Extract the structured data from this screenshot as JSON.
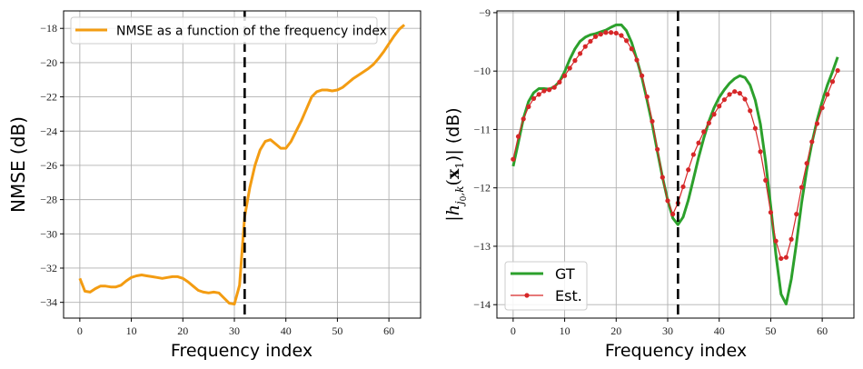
{
  "chart_data": [
    {
      "type": "line",
      "title": "",
      "xlabel": "Frequency index",
      "ylabel": "NMSE (dB)",
      "xlim": [
        -3.15,
        66.15
      ],
      "ylim": [
        -34.92,
        -16.98
      ],
      "xticks": [
        0,
        10,
        20,
        30,
        40,
        50,
        60
      ],
      "yticks": [
        -34,
        -32,
        -30,
        -28,
        -26,
        -24,
        -22,
        -20,
        -18
      ],
      "xtick_labels": [
        "0",
        "10",
        "20",
        "30",
        "40",
        "50",
        "60"
      ],
      "ytick_labels": [
        "−34",
        "−32",
        "−30",
        "−28",
        "−26",
        "−24",
        "−22",
        "−20",
        "−18"
      ],
      "grid": true,
      "legend_position": "top-left",
      "vline": 32,
      "series": [
        {
          "name": "NMSE as a function of the frequency index",
          "color": "#f39c12",
          "x_start": 0,
          "values": [
            -32.6,
            -33.35,
            -33.4,
            -33.2,
            -33.05,
            -33.05,
            -33.1,
            -33.1,
            -33.0,
            -32.75,
            -32.55,
            -32.45,
            -32.4,
            -32.45,
            -32.5,
            -32.55,
            -32.6,
            -32.55,
            -32.5,
            -32.5,
            -32.6,
            -32.8,
            -33.05,
            -33.3,
            -33.4,
            -33.45,
            -33.4,
            -33.45,
            -33.75,
            -34.05,
            -34.1,
            -33.0,
            -29.0,
            -27.3,
            -26.0,
            -25.1,
            -24.6,
            -24.5,
            -24.75,
            -25.0,
            -25.0,
            -24.6,
            -24.0,
            -23.4,
            -22.7,
            -22.0,
            -21.7,
            -21.6,
            -21.6,
            -21.65,
            -21.6,
            -21.45,
            -21.2,
            -20.95,
            -20.75,
            -20.55,
            -20.35,
            -20.1,
            -19.75,
            -19.35,
            -18.9,
            -18.45,
            -18.05,
            -17.8
          ]
        }
      ]
    },
    {
      "type": "line",
      "title": "",
      "xlabel": "Frequency index",
      "ylabel": "|h_{j0,k}(x_1)| (dB)",
      "ylabel_parts": {
        "pre": "|h",
        "sub": "j",
        "subsub": "0",
        "sub2": ",k",
        "mid": "(",
        "bold": "x",
        "sub3": "1",
        "post": ")| (dB)"
      },
      "xlim": [
        -3.15,
        66.15
      ],
      "ylim": [
        -14.23,
        -8.97
      ],
      "xticks": [
        0,
        10,
        20,
        30,
        40,
        50,
        60
      ],
      "yticks": [
        -14,
        -13,
        -12,
        -11,
        -10,
        -9
      ],
      "xtick_labels": [
        "0",
        "10",
        "20",
        "30",
        "40",
        "50",
        "60"
      ],
      "ytick_labels": [
        "−14",
        "−13",
        "−12",
        "−11",
        "−10",
        "−9"
      ],
      "grid": true,
      "legend_position": "bottom-left",
      "vline": 32,
      "series": [
        {
          "name": "GT",
          "color": "#2ca02c",
          "x_start": 0,
          "values": [
            -11.63,
            -11.23,
            -10.81,
            -10.52,
            -10.37,
            -10.3,
            -10.3,
            -10.31,
            -10.27,
            -10.18,
            -10.01,
            -9.8,
            -9.62,
            -9.49,
            -9.42,
            -9.38,
            -9.36,
            -9.33,
            -9.3,
            -9.25,
            -9.21,
            -9.21,
            -9.31,
            -9.51,
            -9.8,
            -10.11,
            -10.5,
            -10.91,
            -11.38,
            -11.82,
            -12.21,
            -12.52,
            -12.63,
            -12.5,
            -12.21,
            -11.85,
            -11.48,
            -11.15,
            -10.86,
            -10.63,
            -10.45,
            -10.32,
            -10.21,
            -10.13,
            -10.08,
            -10.11,
            -10.24,
            -10.5,
            -10.91,
            -11.54,
            -12.31,
            -13.14,
            -13.82,
            -13.99,
            -13.56,
            -12.94,
            -12.26,
            -11.69,
            -11.23,
            -10.84,
            -10.52,
            -10.24,
            -10.01,
            -9.76
          ]
        },
        {
          "name": "Est.",
          "color": "#d62728",
          "x_start": 0,
          "values": [
            -11.51,
            -11.12,
            -10.82,
            -10.61,
            -10.47,
            -10.4,
            -10.34,
            -10.32,
            -10.28,
            -10.19,
            -10.08,
            -9.95,
            -9.82,
            -9.7,
            -9.58,
            -9.49,
            -9.41,
            -9.37,
            -9.34,
            -9.34,
            -9.35,
            -9.39,
            -9.48,
            -9.62,
            -9.81,
            -10.08,
            -10.44,
            -10.86,
            -11.34,
            -11.82,
            -12.22,
            -12.45,
            -12.26,
            -11.98,
            -11.69,
            -11.43,
            -11.23,
            -11.04,
            -10.89,
            -10.74,
            -10.6,
            -10.49,
            -10.4,
            -10.35,
            -10.38,
            -10.48,
            -10.68,
            -10.98,
            -11.38,
            -11.87,
            -12.42,
            -12.91,
            -13.21,
            -13.19,
            -12.88,
            -12.45,
            -11.99,
            -11.58,
            -11.21,
            -10.9,
            -10.63,
            -10.4,
            -10.18,
            -9.99
          ]
        }
      ]
    }
  ]
}
